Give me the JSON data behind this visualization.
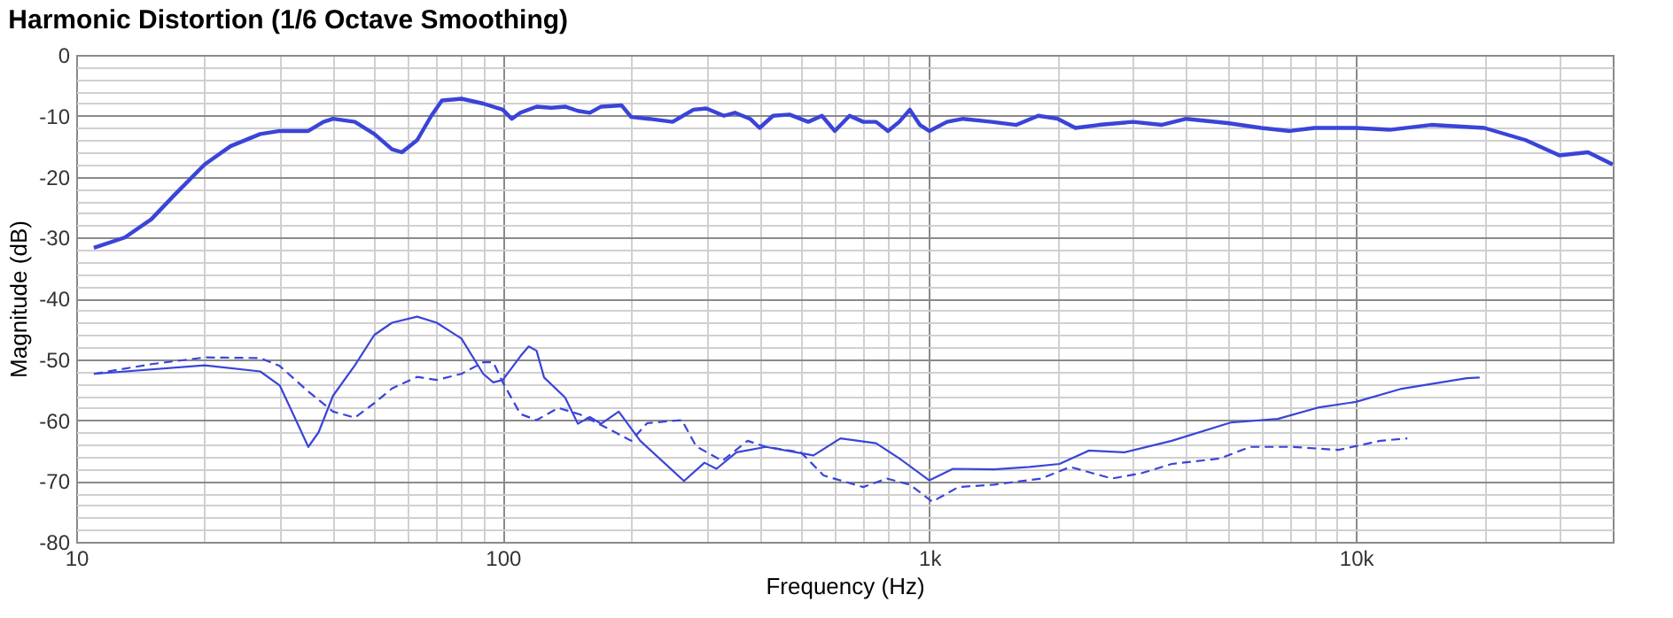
{
  "chart_data": {
    "type": "line",
    "title": "Harmonic Distortion (1/6 Octave Smoothing)",
    "xlabel": "Frequency (Hz)",
    "ylabel": "Magnitude (dB)",
    "log": "x",
    "xlim": [
      10,
      40000
    ],
    "ylim": [
      -80,
      0
    ],
    "xticks": [
      10,
      {
        "value": 20,
        "label": null
      },
      {
        "value": 30,
        "label": null
      },
      {
        "value": 40,
        "label": null
      },
      {
        "value": 50,
        "label": null
      },
      {
        "value": 60,
        "label": null
      },
      {
        "value": 70,
        "label": null
      },
      {
        "value": 80,
        "label": null
      },
      {
        "value": 90,
        "label": null
      },
      100,
      {
        "value": 200,
        "label": null
      },
      {
        "value": 300,
        "label": null
      },
      {
        "value": 400,
        "label": null
      },
      {
        "value": 500,
        "label": null
      },
      {
        "value": 600,
        "label": null
      },
      {
        "value": 700,
        "label": null
      },
      {
        "value": 800,
        "label": null
      },
      {
        "value": 900,
        "label": null
      },
      {
        "value": 1000,
        "label": "1k"
      },
      {
        "value": 2000,
        "label": null
      },
      {
        "value": 3000,
        "label": null
      },
      {
        "value": 4000,
        "label": null
      },
      {
        "value": 5000,
        "label": null
      },
      {
        "value": 6000,
        "label": null
      },
      {
        "value": 7000,
        "label": null
      },
      {
        "value": 8000,
        "label": null
      },
      {
        "value": 9000,
        "label": null
      },
      {
        "value": 10000,
        "label": "10k"
      },
      {
        "value": 20000,
        "label": null
      },
      {
        "value": 30000,
        "label": null
      }
    ],
    "yticks": [
      -80,
      {
        "value": -78,
        "label": null
      },
      {
        "value": -76,
        "label": null
      },
      {
        "value": -74,
        "label": null
      },
      {
        "value": -72,
        "label": null
      },
      -70,
      {
        "value": -68,
        "label": null
      },
      {
        "value": -66,
        "label": null
      },
      {
        "value": -64,
        "label": null
      },
      {
        "value": -62,
        "label": null
      },
      -60,
      {
        "value": -58,
        "label": null
      },
      {
        "value": -56,
        "label": null
      },
      {
        "value": -54,
        "label": null
      },
      {
        "value": -52,
        "label": null
      },
      -50,
      {
        "value": -48,
        "label": null
      },
      {
        "value": -46,
        "label": null
      },
      {
        "value": -44,
        "label": null
      },
      {
        "value": -42,
        "label": null
      },
      -40,
      {
        "value": -38,
        "label": null
      },
      {
        "value": -36,
        "label": null
      },
      {
        "value": -34,
        "label": null
      },
      {
        "value": -32,
        "label": null
      },
      -30,
      {
        "value": -28,
        "label": null
      },
      {
        "value": -26,
        "label": null
      },
      {
        "value": -24,
        "label": null
      },
      {
        "value": -22,
        "label": null
      },
      -20,
      {
        "value": -18,
        "label": null
      },
      {
        "value": -16,
        "label": null
      },
      {
        "value": -14,
        "label": null
      },
      {
        "value": -12,
        "label": null
      },
      -10,
      {
        "value": -8,
        "label": null
      },
      {
        "value": -6,
        "label": null
      },
      {
        "value": -4,
        "label": null
      },
      {
        "value": -2,
        "label": null
      },
      0
    ],
    "grid": true,
    "marker": "none",
    "series": [
      {
        "color": "#3a44d8",
        "line_style": "solid",
        "x": [
          11,
          13,
          15,
          17,
          20,
          23,
          27,
          30,
          35,
          38,
          40,
          45,
          50,
          55,
          58,
          63,
          68,
          72,
          80,
          90,
          100,
          105,
          110,
          120,
          130,
          140,
          150,
          160,
          170,
          190,
          200,
          220,
          250,
          280,
          300,
          330,
          350,
          380,
          400,
          430,
          470,
          520,
          560,
          600,
          650,
          700,
          750,
          800,
          850,
          900,
          950,
          1000,
          1100,
          1200,
          1400,
          1600,
          1800,
          2000,
          2200,
          2500,
          3000,
          3500,
          4000,
          5000,
          6000,
          7000,
          8000,
          10000,
          12000,
          15000,
          20000,
          25000,
          30000,
          35000,
          40000
        ],
        "values": [
          -31.7,
          -30,
          -27,
          -23,
          -18,
          -15,
          -13,
          -12.5,
          -12.5,
          -11,
          -10.5,
          -11,
          -13,
          -15.5,
          -16,
          -14,
          -10,
          -7.5,
          -7.2,
          -8,
          -9,
          -10.5,
          -9.5,
          -8.5,
          -8.7,
          -8.5,
          -9.2,
          -9.5,
          -8.5,
          -8.3,
          -10.2,
          -10.5,
          -11,
          -9,
          -8.8,
          -10,
          -9.5,
          -10.5,
          -12,
          -10,
          -9.8,
          -11,
          -10,
          -12.5,
          -10,
          -11,
          -11,
          -12.5,
          -11,
          -9,
          -11.5,
          -12.5,
          -11,
          -10.5,
          -11,
          -11.5,
          -10,
          -10.5,
          -12,
          -11.5,
          -11,
          -11.5,
          -10.5,
          -11.2,
          -12,
          -12.5,
          -12,
          -12,
          -12.3,
          -11.5,
          -12,
          -14,
          -16.5,
          -16,
          -18
        ]
      },
      {
        "color": "#3a44d8",
        "line_style": "solid",
        "x": [
          11,
          20,
          27,
          30,
          33,
          35,
          37,
          40,
          45,
          50,
          55,
          63,
          70,
          80,
          90,
          95,
          100,
          110,
          115,
          120,
          125,
          140,
          150,
          160,
          170,
          187,
          210,
          266,
          297,
          317,
          353,
          414,
          535,
          619,
          750,
          851,
          1000,
          1136,
          1420,
          1718,
          2018,
          2367,
          2866,
          3700,
          5085,
          6560,
          8200,
          10000,
          12700,
          18200,
          19500
        ],
        "values": [
          -52.4,
          -51,
          -52,
          -54.3,
          -60.5,
          -64.4,
          -62,
          -56,
          -51,
          -46,
          -44,
          -43,
          -44,
          -46.6,
          -52.4,
          -53.8,
          -53.4,
          -49.5,
          -47.9,
          -48.6,
          -53,
          -56.3,
          -60.6,
          -59.5,
          -60.6,
          -58.6,
          -63.4,
          -70,
          -67,
          -68,
          -65.3,
          -64.4,
          -65.8,
          -63,
          -63.8,
          -66.3,
          -69.9,
          -68,
          -68.1,
          -67.7,
          -67.2,
          -65,
          -65.3,
          -63.4,
          -60.4,
          -59.8,
          -57.9,
          -57,
          -54.9,
          -53.1,
          -53
        ]
      },
      {
        "color": "#3a44d8",
        "line_style": "dashed",
        "x": [
          11,
          15,
          20,
          27,
          30,
          35,
          40,
          45,
          50,
          55,
          63,
          70,
          80,
          90,
          95,
          100,
          110,
          120,
          135,
          152,
          178,
          200,
          218,
          263,
          284,
          327,
          375,
          414,
          500,
          565,
          700,
          795,
          900,
          1016,
          1170,
          1420,
          1830,
          2140,
          2680,
          3150,
          3700,
          4800,
          5650,
          7100,
          9100,
          11400,
          13200
        ],
        "values": [
          -52.4,
          -50.8,
          -49.7,
          -49.8,
          -51.1,
          -55.3,
          -58.6,
          -59.6,
          -57.2,
          -54.8,
          -52.9,
          -53.4,
          -52.4,
          -50.5,
          -50.5,
          -53.8,
          -59,
          -60,
          -58,
          -59.1,
          -61.5,
          -63.4,
          -60.5,
          -60,
          -64.3,
          -66.7,
          -63.4,
          -64.4,
          -65.3,
          -69.1,
          -71,
          -69.6,
          -70.6,
          -73.4,
          -71,
          -70.6,
          -69.6,
          -67.7,
          -69.6,
          -68.7,
          -67.2,
          -66.3,
          -64.4,
          -64.4,
          -64.9,
          -63.4,
          -63
        ]
      }
    ]
  }
}
